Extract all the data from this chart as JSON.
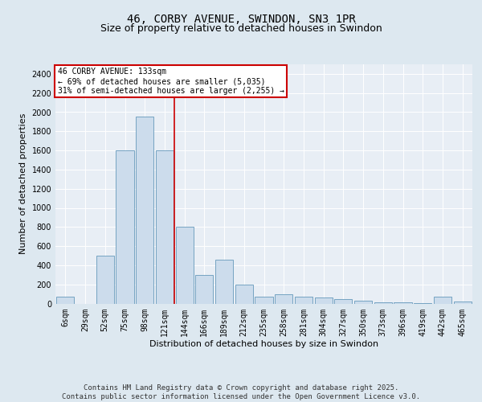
{
  "title": "46, CORBY AVENUE, SWINDON, SN3 1PR",
  "subtitle": "Size of property relative to detached houses in Swindon",
  "xlabel": "Distribution of detached houses by size in Swindon",
  "ylabel": "Number of detached properties",
  "categories": [
    "6sqm",
    "29sqm",
    "52sqm",
    "75sqm",
    "98sqm",
    "121sqm",
    "144sqm",
    "166sqm",
    "189sqm",
    "212sqm",
    "235sqm",
    "258sqm",
    "281sqm",
    "304sqm",
    "327sqm",
    "350sqm",
    "373sqm",
    "396sqm",
    "419sqm",
    "442sqm",
    "465sqm"
  ],
  "values": [
    75,
    0,
    500,
    1600,
    1950,
    1600,
    800,
    300,
    460,
    200,
    75,
    100,
    75,
    60,
    50,
    30,
    15,
    10,
    5,
    75,
    25
  ],
  "bar_color": "#ccdcec",
  "bar_edge_color": "#6699bb",
  "vline_x": 5.5,
  "vline_color": "#cc0000",
  "annotation_text": "46 CORBY AVENUE: 133sqm\n← 69% of detached houses are smaller (5,035)\n31% of semi-detached houses are larger (2,255) →",
  "annotation_box_color": "#ffffff",
  "annotation_box_edge_color": "#cc0000",
  "ylim": [
    0,
    2500
  ],
  "yticks": [
    0,
    200,
    400,
    600,
    800,
    1000,
    1200,
    1400,
    1600,
    1800,
    2000,
    2200,
    2400
  ],
  "bg_color": "#dde8f0",
  "plot_bg_color": "#e8eef5",
  "grid_color": "#ffffff",
  "footer_text": "Contains HM Land Registry data © Crown copyright and database right 2025.\nContains public sector information licensed under the Open Government Licence v3.0.",
  "title_fontsize": 10,
  "subtitle_fontsize": 9,
  "label_fontsize": 8,
  "tick_fontsize": 7,
  "ann_fontsize": 7,
  "footer_fontsize": 6.5
}
